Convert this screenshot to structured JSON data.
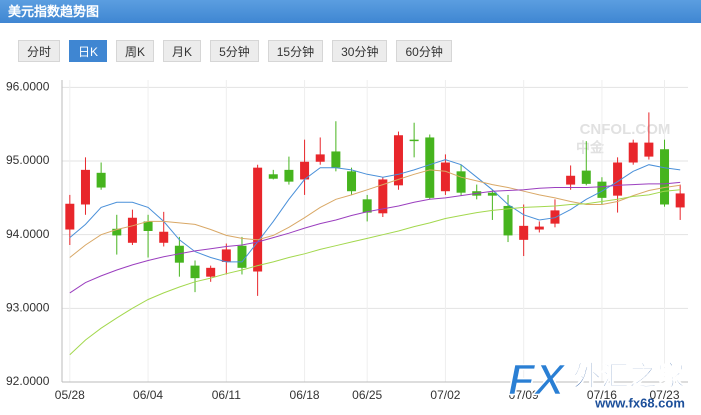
{
  "header": {
    "title": "美元指数趋势图"
  },
  "tabs": [
    "分时",
    "日K",
    "周K",
    "月K",
    "5分钟",
    "15分钟",
    "30分钟",
    "60分钟"
  ],
  "active_tab": 1,
  "watermarks": {
    "site": "CNFOL.COM",
    "site_cn": "中金",
    "logo": "FX",
    "logo_cn": "外汇之家",
    "logo_url": "www.fx68.com"
  },
  "chart_data": {
    "type": "candlestick",
    "categories": [
      "05/28",
      null,
      null,
      null,
      null,
      "06/04",
      null,
      null,
      null,
      null,
      "06/11",
      null,
      null,
      null,
      null,
      "06/18",
      null,
      null,
      null,
      "06/25",
      null,
      null,
      null,
      null,
      "07/02",
      null,
      null,
      null,
      null,
      "07/09",
      null,
      null,
      null,
      null,
      "07/16",
      null,
      null,
      null,
      "07/23",
      null
    ],
    "open": [
      94.07,
      94.41,
      94.84,
      94.08,
      93.89,
      94.18,
      93.89,
      93.85,
      93.58,
      93.43,
      93.63,
      93.85,
      93.5,
      94.82,
      94.88,
      94.75,
      94.99,
      95.13,
      94.86,
      94.48,
      94.29,
      94.67,
      95.29,
      95.32,
      94.59,
      94.86,
      94.59,
      94.57,
      94.39,
      93.93,
      94.07,
      94.15,
      94.68,
      94.87,
      94.72,
      94.53,
      94.98,
      95.06,
      95.16,
      94.37
    ],
    "high": [
      94.54,
      95.05,
      94.98,
      94.27,
      94.34,
      94.27,
      94.31,
      93.97,
      93.65,
      93.58,
      93.88,
      93.97,
      94.95,
      94.88,
      95.06,
      95.29,
      95.32,
      95.54,
      94.91,
      94.54,
      94.78,
      95.4,
      95.52,
      95.36,
      95.09,
      94.95,
      94.68,
      94.61,
      94.54,
      94.41,
      94.18,
      94.48,
      94.94,
      95.27,
      94.78,
      95.05,
      95.29,
      95.66,
      95.29,
      94.68
    ],
    "low": [
      93.86,
      94.27,
      94.61,
      93.73,
      93.86,
      93.69,
      93.84,
      93.43,
      93.22,
      93.36,
      93.46,
      93.46,
      93.17,
      94.75,
      94.68,
      94.54,
      94.95,
      94.86,
      94.54,
      94.18,
      94.24,
      94.61,
      95.05,
      94.48,
      94.54,
      94.53,
      94.48,
      94.2,
      93.9,
      93.71,
      94.03,
      94.1,
      94.61,
      94.67,
      94.41,
      94.3,
      94.95,
      95.02,
      94.38,
      94.2
    ],
    "close": [
      94.42,
      94.88,
      94.64,
      93.99,
      94.23,
      94.05,
      94.04,
      93.62,
      93.41,
      93.55,
      93.8,
      93.55,
      94.91,
      94.76,
      94.72,
      94.99,
      95.09,
      94.91,
      94.59,
      94.3,
      94.75,
      95.35,
      95.27,
      94.5,
      94.98,
      94.57,
      94.53,
      94.53,
      93.99,
      94.12,
      94.11,
      94.33,
      94.8,
      94.69,
      94.5,
      94.98,
      95.25,
      95.25,
      94.41,
      94.56
    ],
    "up_color": "#e8262b",
    "down_color": "#46b41e",
    "series": [
      {
        "color": "#4a90d9",
        "values": [
          93.96,
          94.14,
          94.37,
          94.44,
          94.44,
          94.37,
          94.18,
          93.93,
          93.77,
          93.69,
          93.63,
          93.63,
          93.9,
          94.18,
          94.48,
          94.75,
          94.91,
          94.91,
          94.88,
          94.82,
          94.78,
          94.82,
          94.88,
          94.95,
          95.02,
          94.95,
          94.78,
          94.61,
          94.41,
          94.27,
          94.2,
          94.23,
          94.34,
          94.48,
          94.59,
          94.72,
          94.86,
          94.95,
          94.91,
          94.88
        ]
      },
      {
        "color": "#d9a866",
        "values": [
          93.69,
          93.86,
          94.0,
          94.07,
          94.12,
          94.18,
          94.18,
          94.16,
          94.14,
          94.07,
          93.99,
          93.95,
          93.93,
          93.99,
          94.1,
          94.23,
          94.37,
          94.48,
          94.54,
          94.61,
          94.68,
          94.75,
          94.82,
          94.88,
          94.86,
          94.78,
          94.73,
          94.68,
          94.64,
          94.59,
          94.54,
          94.5,
          94.45,
          94.41,
          94.41,
          94.45,
          94.53,
          94.6,
          94.64,
          94.67
        ]
      },
      {
        "color": "#9b3fbf",
        "values": [
          93.21,
          93.35,
          93.44,
          93.52,
          93.59,
          93.65,
          93.7,
          93.74,
          93.78,
          93.81,
          93.84,
          93.86,
          93.9,
          93.96,
          94.02,
          94.09,
          94.15,
          94.2,
          94.26,
          94.31,
          94.35,
          94.39,
          94.44,
          94.48,
          94.5,
          94.53,
          94.56,
          94.59,
          94.6,
          94.61,
          94.63,
          94.64,
          94.64,
          94.64,
          94.65,
          94.67,
          94.68,
          94.69,
          94.69,
          94.71
        ]
      },
      {
        "color": "#a3d84e",
        "values": [
          92.37,
          92.57,
          92.73,
          92.87,
          93.0,
          93.12,
          93.21,
          93.29,
          93.36,
          93.41,
          93.47,
          93.52,
          93.58,
          93.63,
          93.69,
          93.74,
          93.8,
          93.85,
          93.9,
          93.95,
          94.0,
          94.05,
          94.11,
          94.16,
          94.22,
          94.26,
          94.3,
          94.33,
          94.35,
          94.37,
          94.38,
          94.39,
          94.41,
          94.42,
          94.45,
          94.48,
          94.52,
          94.54,
          94.59,
          94.61
        ]
      }
    ],
    "ylim": [
      92,
      96.1
    ],
    "yticks": [
      {
        "value": 92,
        "label": "92.0000"
      },
      {
        "value": 93,
        "label": "93.0000"
      },
      {
        "value": 94,
        "label": "94.0000"
      },
      {
        "value": 95,
        "label": "95.0000"
      },
      {
        "value": 96,
        "label": "96.0000"
      }
    ],
    "grid": true
  }
}
